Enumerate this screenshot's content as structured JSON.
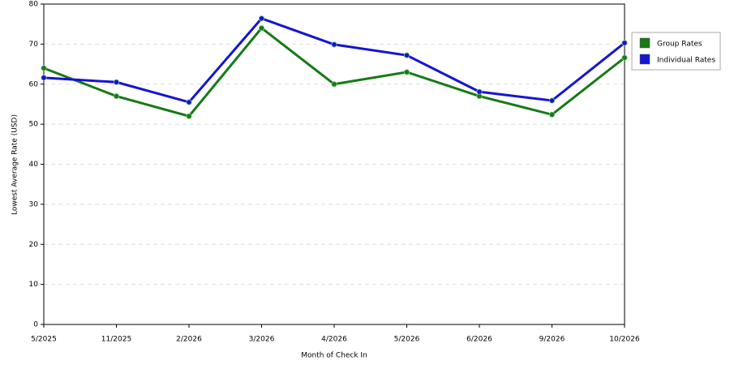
{
  "chart_data": {
    "type": "line",
    "x_label": "Month of Check In",
    "y_label": "Lowest Average Rate (USD)",
    "categories": [
      "5/2025",
      "11/2025",
      "2/2026",
      "3/2026",
      "4/2026",
      "5/2026",
      "6/2026",
      "9/2026",
      "10/2026"
    ],
    "series": [
      {
        "name": "Group Rates",
        "color": "#167a16",
        "values": [
          64,
          57,
          52,
          74,
          60,
          63,
          57,
          52.4,
          66.6
        ]
      },
      {
        "name": "Individual Rates",
        "color": "#1414d2",
        "values": [
          61.6,
          60.5,
          55.5,
          76.4,
          69.9,
          67.2,
          58.1,
          55.9,
          70.3
        ]
      }
    ],
    "ylim": [
      0,
      80
    ],
    "yticks": [
      0,
      10,
      20,
      30,
      40,
      50,
      60,
      70,
      80
    ],
    "grid": true,
    "legend": "right"
  }
}
